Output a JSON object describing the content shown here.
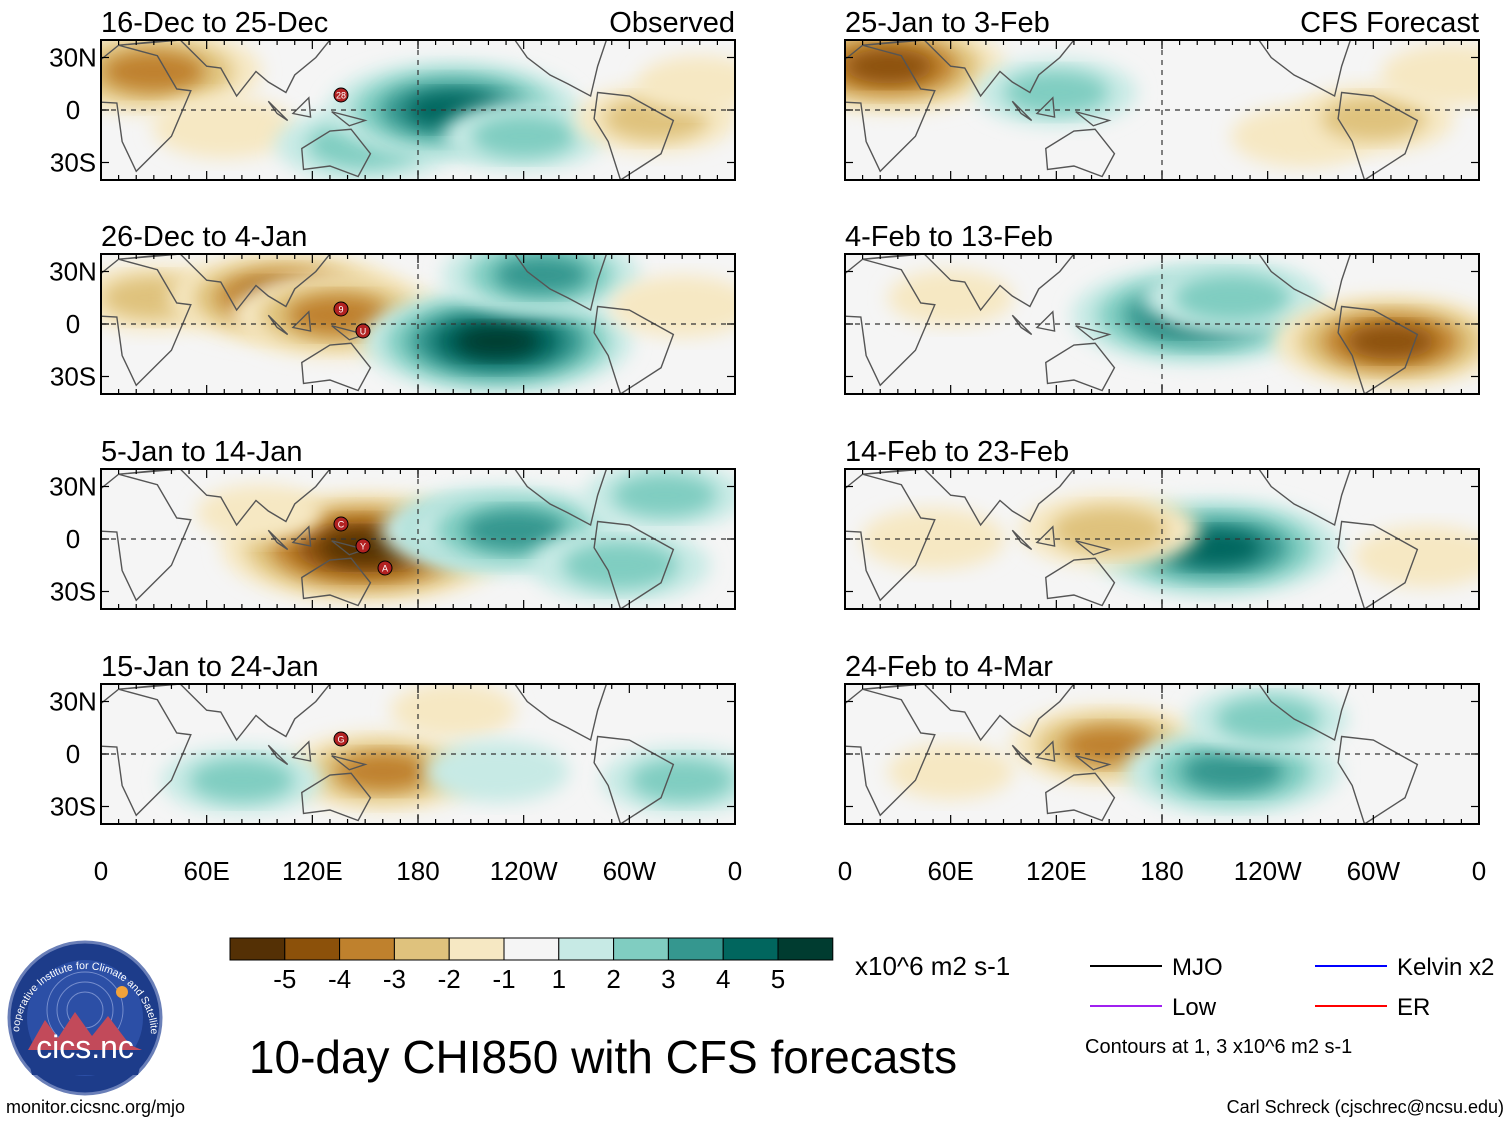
{
  "title": "10-day CHI850 with CFS forecasts",
  "observed_label": "Observed",
  "forecast_label": "CFS Forecast",
  "panels": [
    {
      "id": "obs1",
      "period": "16-Dec to 25-Dec",
      "kind": "observed",
      "anomalies": [
        {
          "lon": 30,
          "lat": 22,
          "v": -3.5
        },
        {
          "lon": 70,
          "lat": -10,
          "v": -1.5
        },
        {
          "lon": 150,
          "lat": -20,
          "v": 2.5
        },
        {
          "lon": 200,
          "lat": 0,
          "v": 4.5
        },
        {
          "lon": 240,
          "lat": -15,
          "v": 2
        },
        {
          "lon": 315,
          "lat": -5,
          "v": -2
        },
        {
          "lon": 340,
          "lat": 15,
          "v": -1
        }
      ],
      "storm_labels": [
        "28"
      ]
    },
    {
      "id": "obs2",
      "period": "26-Dec to 4-Jan",
      "kind": "observed",
      "anomalies": [
        {
          "lon": 30,
          "lat": 15,
          "v": -2
        },
        {
          "lon": 105,
          "lat": 15,
          "v": -4
        },
        {
          "lon": 135,
          "lat": 5,
          "v": -3.5
        },
        {
          "lon": 225,
          "lat": -10,
          "v": 5
        },
        {
          "lon": 250,
          "lat": 28,
          "v": 3
        },
        {
          "lon": 330,
          "lat": 10,
          "v": -1.5
        }
      ],
      "storm_labels": [
        "9",
        "U"
      ]
    },
    {
      "id": "obs3",
      "period": "5-Jan to 14-Jan",
      "kind": "observed",
      "anomalies": [
        {
          "lon": 150,
          "lat": -5,
          "v": -5.5
        },
        {
          "lon": 90,
          "lat": 15,
          "v": -1
        },
        {
          "lon": 215,
          "lat": 5,
          "v": 3
        },
        {
          "lon": 235,
          "lat": 5,
          "v": 3.5
        },
        {
          "lon": 295,
          "lat": -15,
          "v": 2.5
        },
        {
          "lon": 320,
          "lat": 25,
          "v": 2
        }
      ],
      "storm_labels": [
        "C",
        "Y",
        "A"
      ]
    },
    {
      "id": "obs4",
      "period": "15-Jan to 24-Jan",
      "kind": "observed",
      "anomalies": [
        {
          "lon": 160,
          "lat": -10,
          "v": -3
        },
        {
          "lon": 200,
          "lat": 25,
          "v": -1
        },
        {
          "lon": 80,
          "lat": -15,
          "v": 2
        },
        {
          "lon": 225,
          "lat": -10,
          "v": 1.5
        },
        {
          "lon": 330,
          "lat": -15,
          "v": 2
        }
      ],
      "storm_labels": [
        "G"
      ]
    },
    {
      "id": "fc1",
      "period": "25-Jan to 3-Feb",
      "kind": "forecast",
      "anomalies": [
        {
          "lon": 25,
          "lat": 25,
          "v": -4
        },
        {
          "lon": 120,
          "lat": 10,
          "v": 2
        },
        {
          "lon": 260,
          "lat": -15,
          "v": -1.5
        },
        {
          "lon": 300,
          "lat": -5,
          "v": -2
        },
        {
          "lon": 345,
          "lat": 20,
          "v": -1.5
        }
      ],
      "storm_labels": []
    },
    {
      "id": "fc2",
      "period": "4-Feb to 13-Feb",
      "kind": "forecast",
      "anomalies": [
        {
          "lon": 200,
          "lat": 5,
          "v": 4.5
        },
        {
          "lon": 220,
          "lat": 15,
          "v": 2.5
        },
        {
          "lon": 310,
          "lat": -10,
          "v": -4
        },
        {
          "lon": 60,
          "lat": 15,
          "v": -1
        }
      ],
      "storm_labels": []
    },
    {
      "id": "fc3",
      "period": "14-Feb to 23-Feb",
      "kind": "forecast",
      "anomalies": [
        {
          "lon": 210,
          "lat": -5,
          "v": 4.5
        },
        {
          "lon": 150,
          "lat": 5,
          "v": -2.5
        },
        {
          "lon": 330,
          "lat": -10,
          "v": -1.5
        },
        {
          "lon": 50,
          "lat": 0,
          "v": -1.5
        }
      ],
      "storm_labels": []
    },
    {
      "id": "fc4",
      "period": "24-Feb to 4-Mar",
      "kind": "forecast",
      "anomalies": [
        {
          "lon": 150,
          "lat": 5,
          "v": -3
        },
        {
          "lon": 220,
          "lat": -10,
          "v": 3.5
        },
        {
          "lon": 240,
          "lat": 20,
          "v": 2
        },
        {
          "lon": 60,
          "lat": -10,
          "v": -1
        }
      ],
      "storm_labels": []
    }
  ],
  "axes": {
    "lat_ticks": [
      "30N",
      "0",
      "30S"
    ],
    "lon_ticks": [
      "0",
      "60E",
      "120E",
      "180",
      "120W",
      "60W",
      "0"
    ]
  },
  "colorbar": {
    "levels": [
      "-5",
      "-4",
      "-3",
      "-2",
      "-1",
      "1",
      "2",
      "3",
      "4",
      "5"
    ],
    "colors": [
      "#543005",
      "#8c510a",
      "#bf812d",
      "#dfc27d",
      "#f6e8c3",
      "#f5f5f5",
      "#c7eae5",
      "#80cdc1",
      "#35978f",
      "#01665e",
      "#003c30"
    ],
    "units": "x10^6 m2 s-1"
  },
  "legend": {
    "items": [
      {
        "label": "MJO",
        "color": "#000000"
      },
      {
        "label": "Kelvin x2",
        "color": "#0000ff"
      },
      {
        "label": "Low",
        "color": "#a020f0"
      },
      {
        "label": "ER",
        "color": "#ff0000"
      }
    ],
    "note": "Contours at 1, 3 x10^6 m2 s-1"
  },
  "logo": {
    "text": "cics.nc",
    "ring_text": "Cooperative Institute for Climate and Satellites"
  },
  "footer": {
    "left": "monitor.cicsnc.org/mjo",
    "right": "Carl Schreck (cjschrec@ncsu.edu)"
  }
}
